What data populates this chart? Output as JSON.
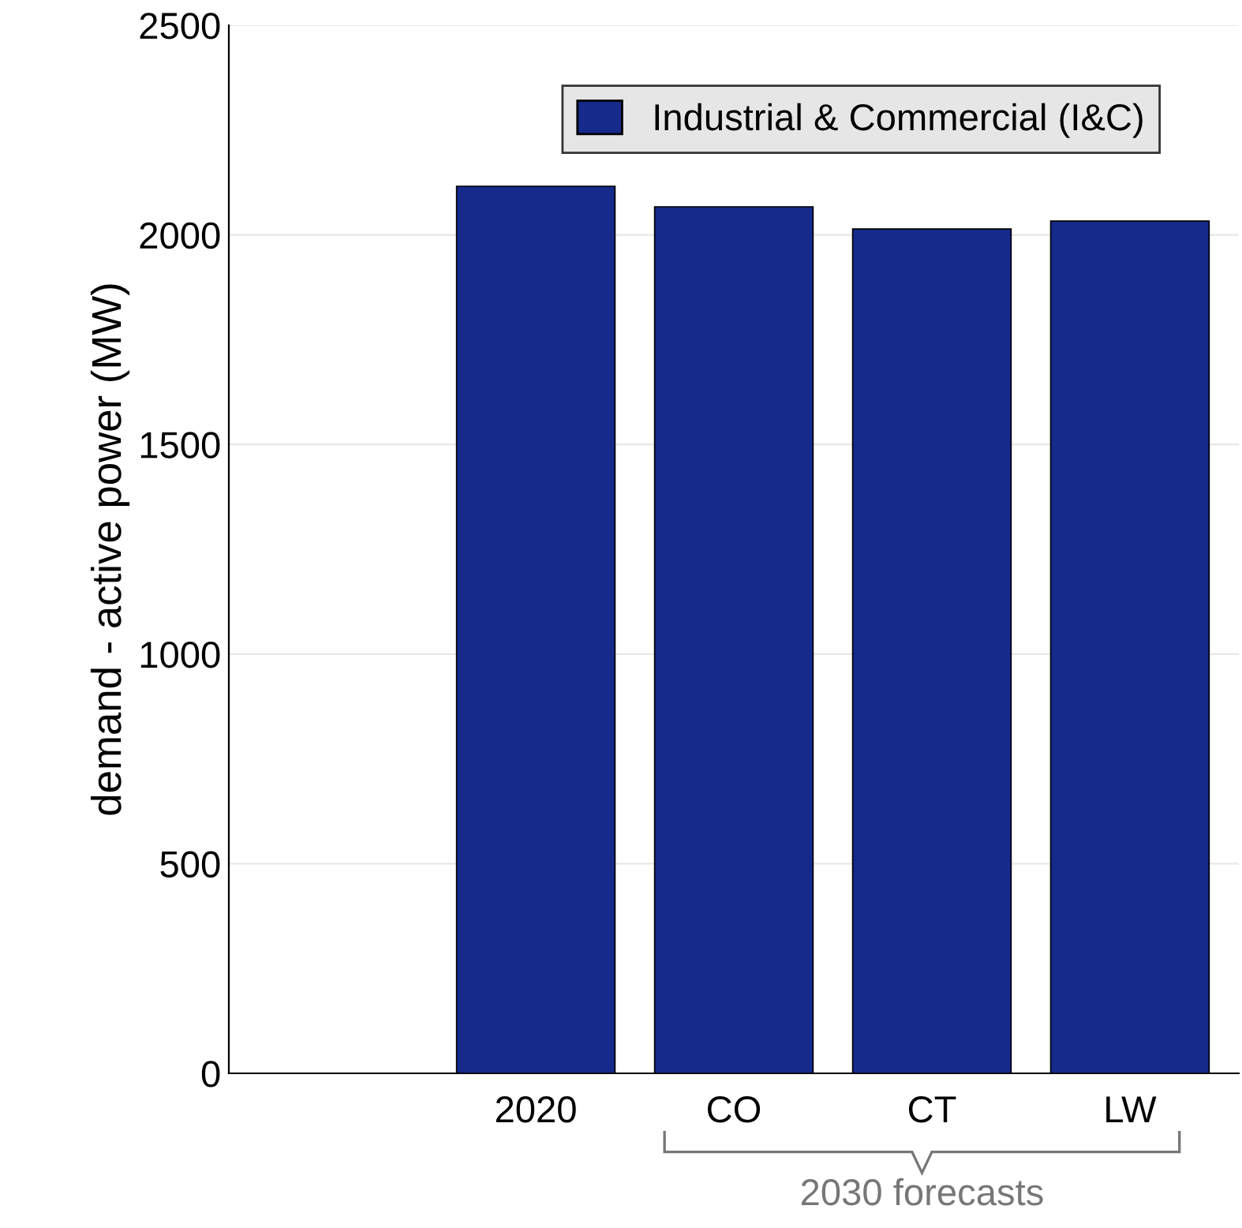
{
  "chart_data": {
    "type": "bar",
    "ylabel": "demand - active power (MW)",
    "categories": [
      "2020",
      "CO",
      "CT",
      "LW"
    ],
    "series": [
      {
        "name": "Industrial & Commercial (I&C)",
        "color": "#152a8a",
        "values": [
          2116,
          2067,
          2014,
          2033
        ]
      }
    ],
    "ylim": [
      0,
      2500
    ],
    "yticks": [
      0,
      500,
      1000,
      1500,
      2000,
      2500
    ],
    "grid": "y",
    "legend": "top right",
    "annotations": [
      "2030 forecasts"
    ]
  }
}
